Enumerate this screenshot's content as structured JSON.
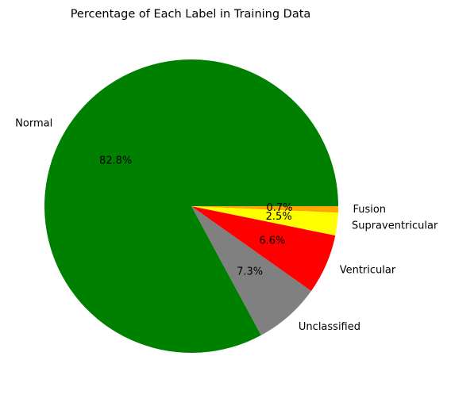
{
  "chart_data": {
    "type": "pie",
    "title": "Percentage of Each Label in Training Data",
    "labels": [
      "Normal",
      "Unclassified",
      "Ventricular",
      "Supraventricular",
      "Fusion"
    ],
    "values": [
      82.8,
      7.3,
      6.6,
      2.5,
      0.7
    ],
    "value_labels": [
      "82.8%",
      "7.3%",
      "6.6%",
      "2.5%",
      "0.7%"
    ],
    "colors": [
      "#008000",
      "#808080",
      "#ff0000",
      "#ffff00",
      "#ffa500"
    ],
    "start_angle_deg": 0,
    "direction": "counterclockwise",
    "legend": "none"
  }
}
